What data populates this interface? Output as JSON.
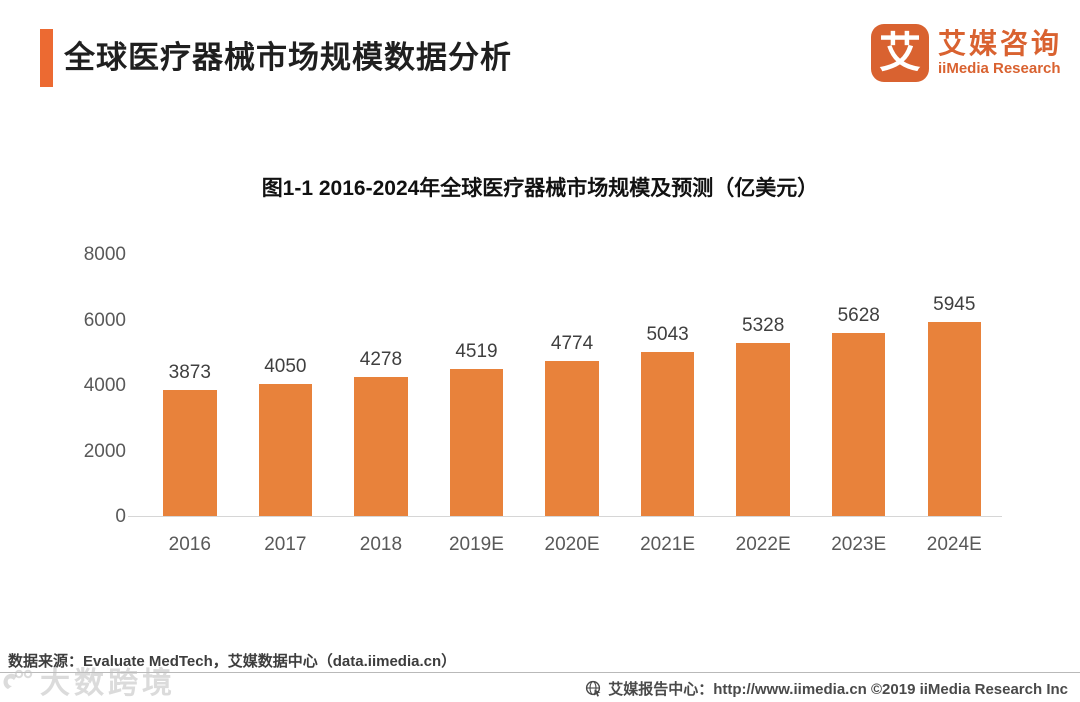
{
  "header": {
    "title": "全球医疗器械市场规模数据分析",
    "accent_color": "#EC6A32",
    "logo": {
      "glyph": "艾",
      "name_cn": "艾媒咨询",
      "name_en": "iiMedia Research",
      "color": "#D96230"
    }
  },
  "chart_data": {
    "type": "bar",
    "title": "图1-1 2016-2024年全球医疗器械市场规模及预测（亿美元）",
    "categories": [
      "2016",
      "2017",
      "2018",
      "2019E",
      "2020E",
      "2021E",
      "2022E",
      "2023E",
      "2024E"
    ],
    "values": [
      3873,
      4050,
      4278,
      4519,
      4774,
      5043,
      5328,
      5628,
      5945
    ],
    "unit": "亿美元",
    "xlabel": "",
    "ylabel": "",
    "ylim": [
      0,
      8000
    ],
    "yticks": [
      0,
      2000,
      4000,
      6000,
      8000
    ],
    "grid": false,
    "legend": "none",
    "bar_color": "#E8823B",
    "value_labels": "above-bars"
  },
  "source_note": "数据来源：Evaluate MedTech，艾媒数据中心（data.iimedia.cn）",
  "watermark": {
    "text": "大数跨境"
  },
  "footer": {
    "icon": "globe-cursor-icon",
    "text": "艾媒报告中心：http://www.iimedia.cn ©2019  iiMedia Research  Inc"
  }
}
